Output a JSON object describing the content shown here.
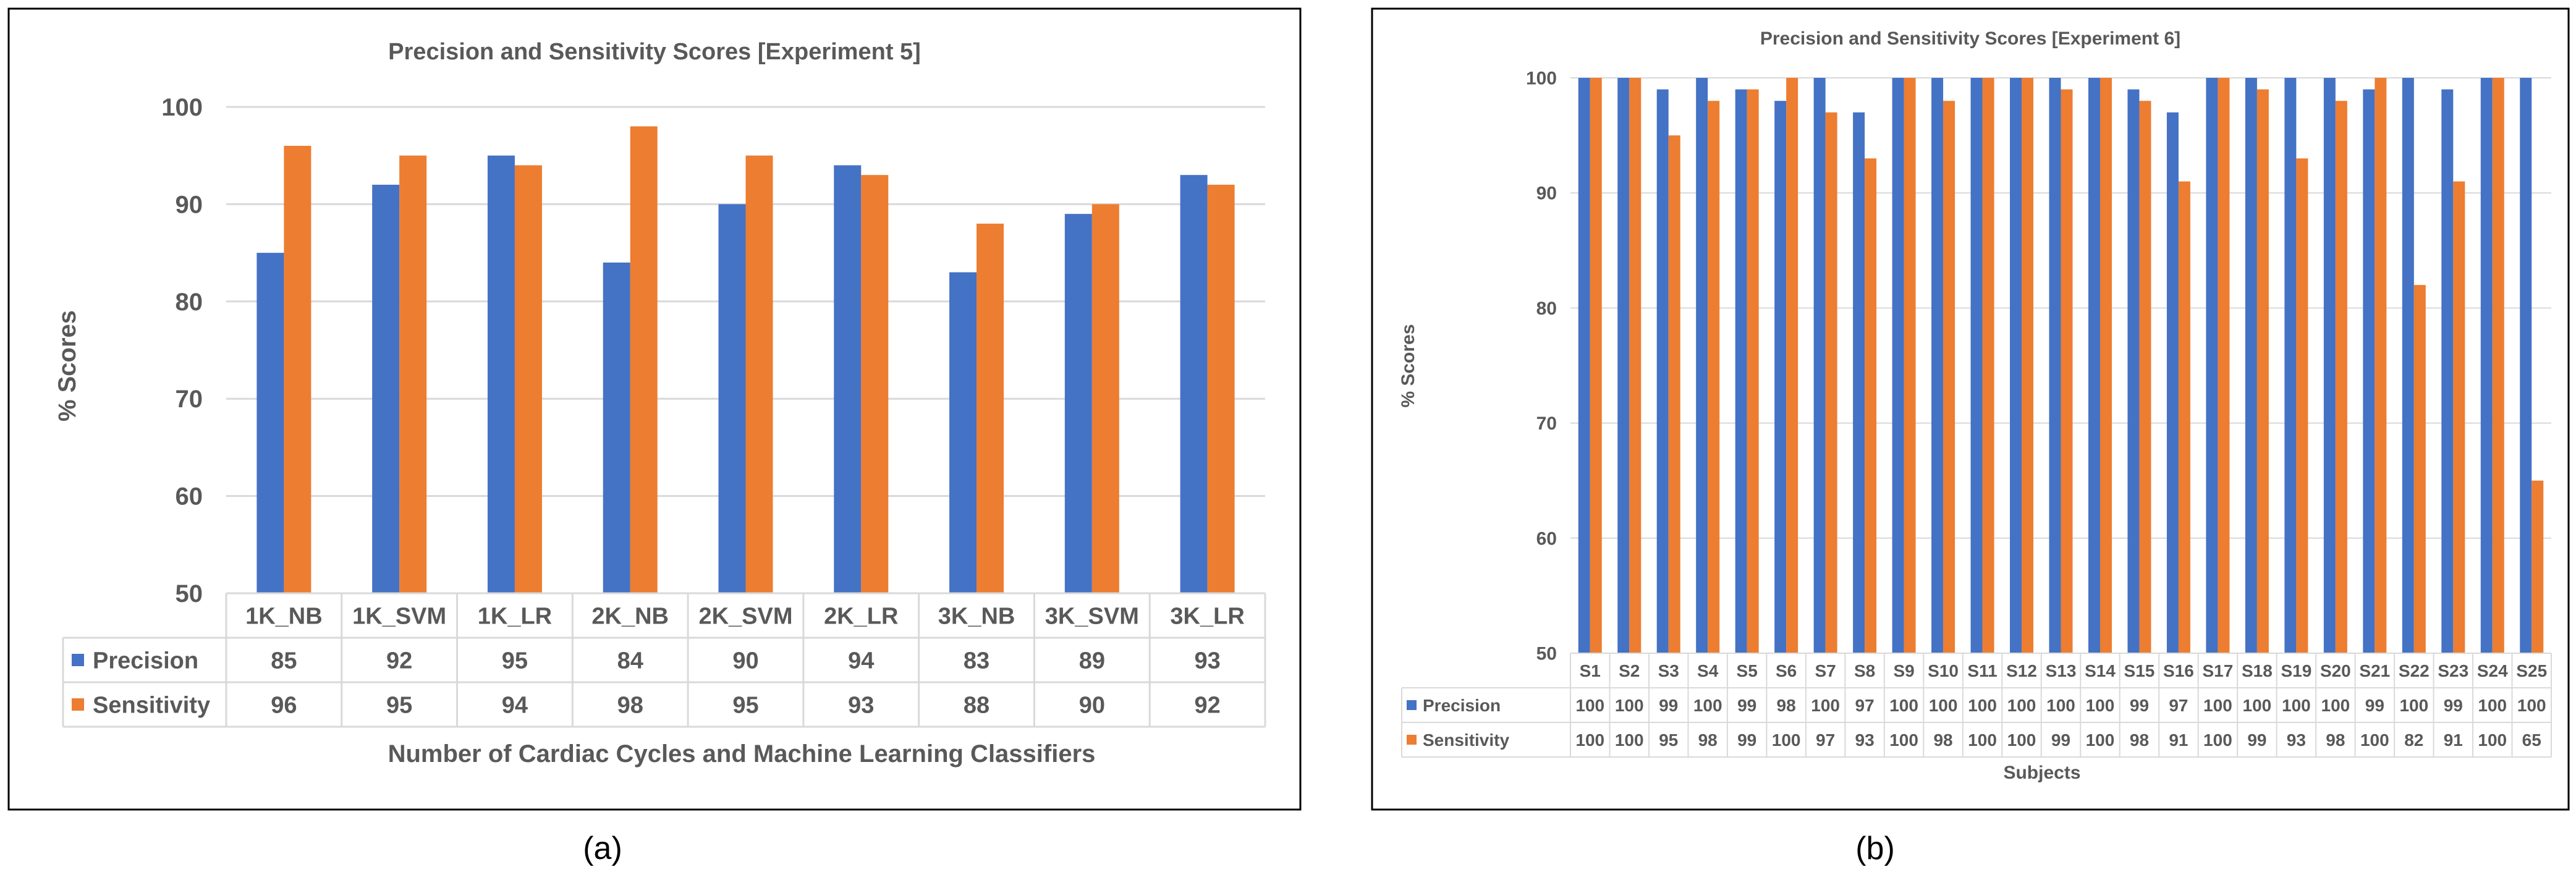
{
  "colors": {
    "precision": "#4472C4",
    "sensitivity": "#ED7D31",
    "grid": "#D9D9D9",
    "text": "#595959",
    "border": "#000000"
  },
  "chart_data": [
    {
      "type": "bar",
      "title": "Precision and Sensitivity Scores [Experiment 5]",
      "xlabel": "Number of Cardiac Cycles and Machine Learning Classifiers",
      "ylabel": "% Scores",
      "ylim": [
        50,
        100
      ],
      "yticks": [
        50,
        60,
        70,
        80,
        90,
        100
      ],
      "categories": [
        "1K_NB",
        "1K_SVM",
        "1K_LR",
        "2K_NB",
        "2K_SVM",
        "2K_LR",
        "3K_NB",
        "3K_SVM",
        "3K_LR"
      ],
      "series": [
        {
          "name": "Precision",
          "values": [
            85,
            92,
            95,
            84,
            90,
            94,
            83,
            89,
            93
          ]
        },
        {
          "name": "Sensitivity",
          "values": [
            96,
            95,
            94,
            98,
            95,
            93,
            88,
            90,
            92
          ]
        }
      ],
      "grid": true,
      "legend": "data-table",
      "caption": "(a)"
    },
    {
      "type": "bar",
      "title": "Precision and Sensitivity Scores [Experiment 6]",
      "xlabel": "Subjects",
      "ylabel": "% Scores",
      "ylim": [
        50,
        100
      ],
      "yticks": [
        50,
        60,
        70,
        80,
        90,
        100
      ],
      "categories": [
        "S1",
        "S2",
        "S3",
        "S4",
        "S5",
        "S6",
        "S7",
        "S8",
        "S9",
        "S10",
        "S11",
        "S12",
        "S13",
        "S14",
        "S15",
        "S16",
        "S17",
        "S18",
        "S19",
        "S20",
        "S21",
        "S22",
        "S23",
        "S24",
        "S25"
      ],
      "series": [
        {
          "name": "Precision",
          "values": [
            100,
            100,
            99,
            100,
            99,
            98,
            100,
            97,
            100,
            100,
            100,
            100,
            100,
            100,
            99,
            97,
            100,
            100,
            100,
            100,
            99,
            100,
            99,
            100,
            100
          ]
        },
        {
          "name": "Sensitivity",
          "values": [
            100,
            100,
            95,
            98,
            99,
            100,
            97,
            93,
            100,
            98,
            100,
            100,
            99,
            100,
            98,
            91,
            100,
            99,
            93,
            98,
            100,
            82,
            91,
            100,
            65
          ]
        }
      ],
      "grid": true,
      "legend": "data-table",
      "caption": "(b)"
    }
  ]
}
